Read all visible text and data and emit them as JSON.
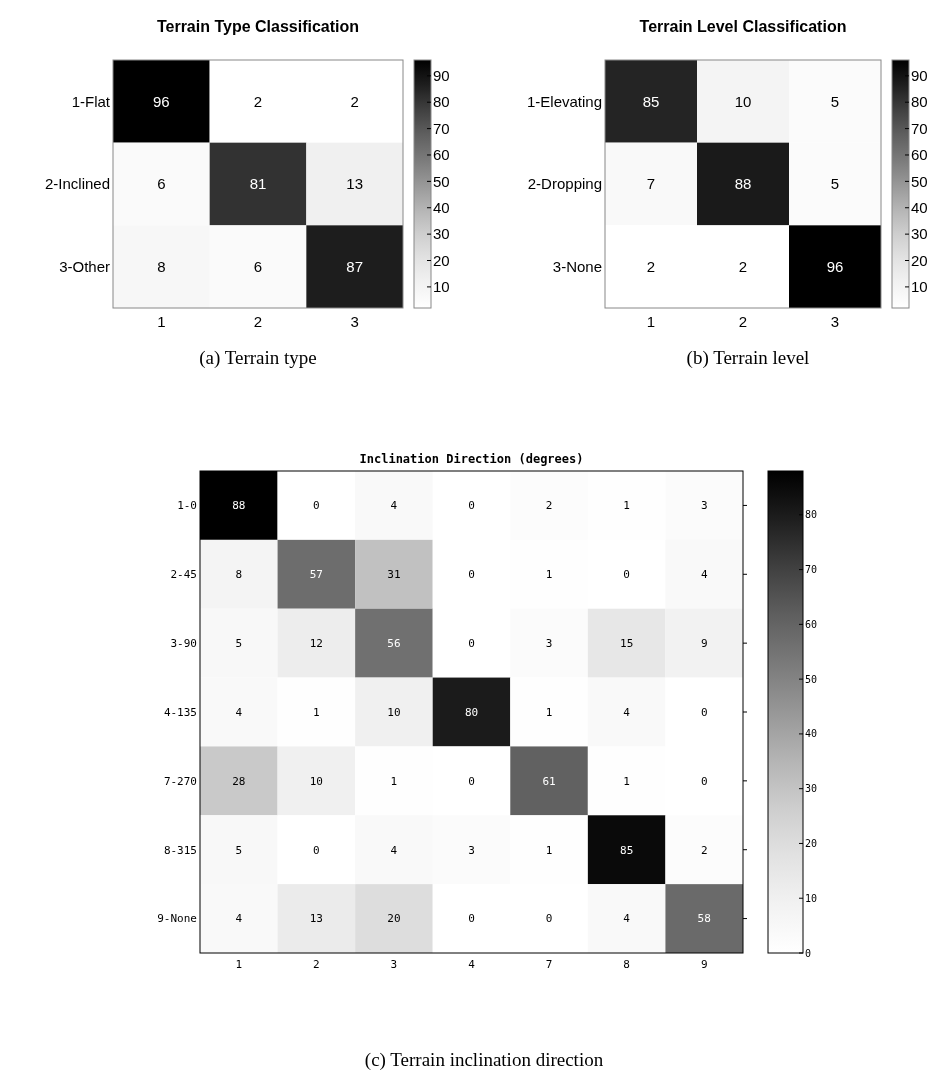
{
  "chart_data": [
    {
      "type": "heatmap",
      "title": "Terrain Type Classification",
      "categories": [
        "1",
        "2",
        "3"
      ],
      "y_categories": [
        "1-Flat",
        "2-Inclined",
        "3-Other"
      ],
      "cells": [
        [
          96,
          2,
          2
        ],
        [
          6,
          81,
          13
        ],
        [
          8,
          6,
          87
        ]
      ],
      "data_labels": true,
      "clim": [
        2,
        96
      ],
      "cticks": [
        10,
        20,
        30,
        40,
        50,
        60,
        70,
        80,
        90
      ],
      "annotations": [
        "(a) Terrain type"
      ]
    },
    {
      "type": "heatmap",
      "title": "Terrain Level Classification",
      "categories": [
        "1",
        "2",
        "3"
      ],
      "y_categories": [
        "1-Elevating",
        "2-Dropping",
        "3-None"
      ],
      "cells": [
        [
          85,
          10,
          5
        ],
        [
          7,
          88,
          5
        ],
        [
          2,
          2,
          96
        ]
      ],
      "data_labels": true,
      "clim": [
        2,
        96
      ],
      "cticks": [
        10,
        20,
        30,
        40,
        50,
        60,
        70,
        80,
        90
      ],
      "annotations": [
        "(b) Terrain level"
      ]
    },
    {
      "type": "heatmap",
      "title": "Inclination Direction (degrees)",
      "categories": [
        "1",
        "2",
        "3",
        "4",
        "7",
        "8",
        "9"
      ],
      "y_categories": [
        "1-0",
        "2-45",
        "3-90",
        "4-135",
        "7-270",
        "8-315",
        "9-None"
      ],
      "cells": [
        [
          88,
          0,
          4,
          0,
          2,
          1,
          3
        ],
        [
          8,
          57,
          31,
          0,
          1,
          0,
          4
        ],
        [
          5,
          12,
          56,
          0,
          3,
          15,
          9
        ],
        [
          4,
          1,
          10,
          80,
          1,
          4,
          0
        ],
        [
          28,
          10,
          1,
          0,
          61,
          1,
          0
        ],
        [
          5,
          0,
          4,
          3,
          1,
          85,
          2
        ],
        [
          4,
          13,
          20,
          0,
          0,
          4,
          58
        ]
      ],
      "data_labels": true,
      "clim": [
        0,
        88
      ],
      "cticks": [
        0,
        10,
        20,
        30,
        40,
        50,
        60,
        70,
        80
      ],
      "annotations": [
        "(c) Terrain inclination direction"
      ]
    }
  ]
}
